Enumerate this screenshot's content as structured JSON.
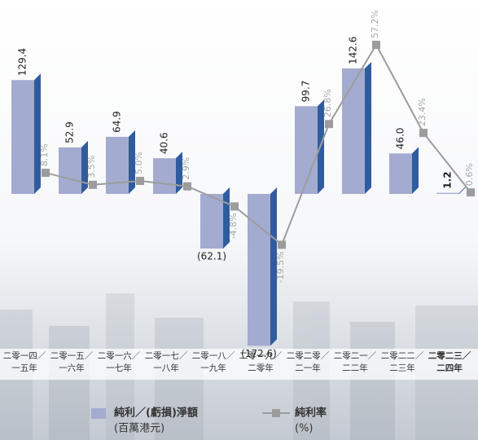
{
  "chart_data": {
    "type": "bar",
    "categories": [
      [
        "二零一四／",
        "一五年"
      ],
      [
        "二零一五／",
        "一六年"
      ],
      [
        "二零一六／",
        "一七年"
      ],
      [
        "二零一七／",
        "一八年"
      ],
      [
        "二零一八／",
        "一九年"
      ],
      [
        "二零一九／",
        "二零年"
      ],
      [
        "二零二零／",
        "二一年"
      ],
      [
        "二零二一／",
        "二二年"
      ],
      [
        "二零二二／",
        "二三年"
      ],
      [
        "二零二三／",
        "二四年"
      ]
    ],
    "highlight_index": 9,
    "series": [
      {
        "name": "純利／(虧損)淨額",
        "unit": "(百萬港元)",
        "type": "bar",
        "color": "#a4abd0",
        "side_color": "#2f5c9e",
        "values": [
          129.4,
          52.9,
          64.9,
          40.6,
          -62.1,
          -172.6,
          99.7,
          142.6,
          46.0,
          1.2
        ],
        "value_labels": [
          "129.4",
          "52.9",
          "64.9",
          "40.6",
          "(62.1)",
          "(172.6)",
          "99.7",
          "142.6",
          "46.0",
          "1.2"
        ]
      },
      {
        "name": "純利率",
        "unit": "(%)",
        "type": "line",
        "color": "#9c9c9c",
        "axis": "y2",
        "values": [
          8.1,
          3.5,
          5.0,
          2.9,
          -4.8,
          -19.5,
          26.8,
          57.2,
          23.4,
          0.6
        ],
        "value_labels": [
          "8.1%",
          "3.5%",
          "5.0%",
          "2.9%",
          "-4.8%",
          "-19.5%",
          "26.8%",
          "57.2%",
          "23.4%",
          "0.6%"
        ]
      }
    ]
  }
}
